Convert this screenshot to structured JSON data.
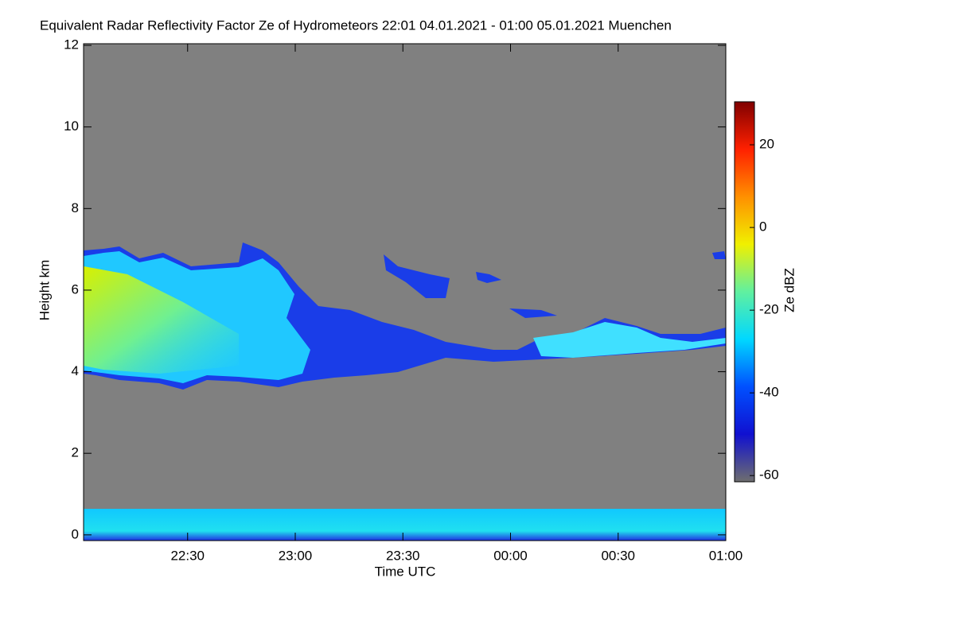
{
  "chart_data": {
    "type": "heatmap",
    "title": "Equivalent Radar Reflectivity Factor Ze of Hydrometeors   22:01 04.01.2021 - 01:00 05.01.2021 Muenchen",
    "xlabel": "Time UTC",
    "ylabel": "Height km",
    "xlim": [
      1321,
      1500
    ],
    "xticks": [
      {
        "value": 1350,
        "label": "22:30"
      },
      {
        "value": 1380,
        "label": "23:00"
      },
      {
        "value": 1410,
        "label": "23:30"
      },
      {
        "value": 1440,
        "label": "00:00"
      },
      {
        "value": 1470,
        "label": "00:30"
      },
      {
        "value": 1500,
        "label": "01:00"
      }
    ],
    "ylim": [
      -0.14,
      12.04
    ],
    "yticks": [
      0,
      2,
      4,
      6,
      8,
      10,
      12
    ],
    "colorbar": {
      "label": "Ze dBZ",
      "clim": [
        -61.5,
        30.4
      ],
      "ticks": [
        -60,
        -40,
        -20,
        0,
        20
      ],
      "colormap": [
        "#6e6e6e",
        "#1010d0",
        "#0050ff",
        "#00d8ff",
        "#60f0a0",
        "#f0f000",
        "#ff9000",
        "#ff2000",
        "#800000"
      ]
    },
    "background_color": "#808080"
  }
}
